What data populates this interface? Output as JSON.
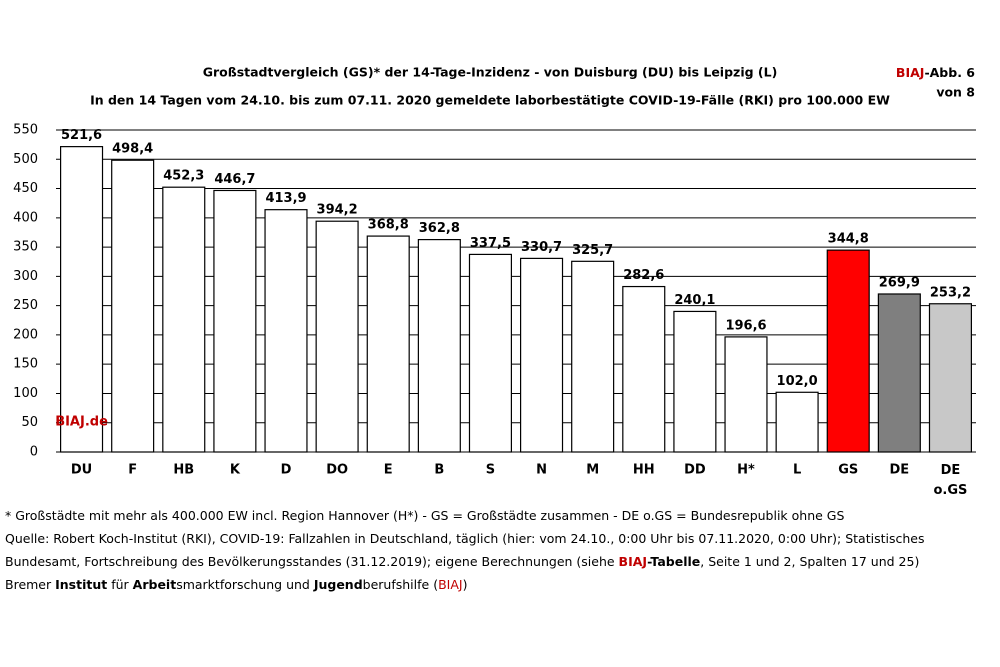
{
  "header": {
    "title_line1": "Großstadtvergleich (GS)* der 14-Tage-Inzidenz - von Duisburg (DU) bis Leipzig (L)",
    "title_line2": "In den 14 Tagen vom 24.10. bis zum 07.11. 2020 gemeldete laborbestätigte COVID-19-Fälle (RKI) pro 100.000 EW",
    "badge": [
      "BIAJ",
      "-Abb. 6",
      "von 8"
    ]
  },
  "chart_data": {
    "type": "bar",
    "categories": [
      "DU",
      "F",
      "HB",
      "K",
      "D",
      "DO",
      "E",
      "B",
      "S",
      "N",
      "M",
      "HH",
      "DD",
      "H*",
      "L",
      "GS",
      "DE",
      "DE o.GS"
    ],
    "values": [
      521.6,
      498.4,
      452.3,
      446.7,
      413.9,
      394.2,
      368.8,
      362.8,
      337.5,
      330.7,
      325.7,
      282.6,
      240.1,
      196.6,
      102.0,
      344.8,
      269.9,
      253.2
    ],
    "value_labels": [
      "521,6",
      "498,4",
      "452,3",
      "446,7",
      "413,9",
      "394,2",
      "368,8",
      "362,8",
      "337,5",
      "330,7",
      "325,7",
      "282,6",
      "240,1",
      "196,6",
      "102,0",
      "344,8",
      "269,9",
      "253,2"
    ],
    "colors": [
      "#ffffff",
      "#ffffff",
      "#ffffff",
      "#ffffff",
      "#ffffff",
      "#ffffff",
      "#ffffff",
      "#ffffff",
      "#ffffff",
      "#ffffff",
      "#ffffff",
      "#ffffff",
      "#ffffff",
      "#ffffff",
      "#ffffff",
      "#ff0000",
      "#7f7f7f",
      "#c8c8c8"
    ],
    "ylim": [
      0,
      550
    ],
    "yticks": [
      0,
      50,
      100,
      150,
      200,
      250,
      300,
      350,
      400,
      450,
      500,
      550
    ],
    "grid": true,
    "watermark": "BIAJ.de"
  },
  "footer": {
    "line1": [
      "* Großstädte mit mehr als 400.000 EW incl. Region Hannover (H*) - GS = Großstädte zusammen - DE o.GS = Bundesrepublik ohne GS"
    ],
    "line2": [
      "Quelle: Robert Koch-Institut (RKI), COVID-19: Fallzahlen in Deutschland, täglich (hier: vom 24.10., 0:00 Uhr bis 07.11.2020, 0:00 Uhr); Statistisches"
    ],
    "line3": [
      "Bundesamt, Fortschreibung des Bevölkerungsstandes (31.12.2019); eigene Berechnungen (siehe ",
      "BIAJ",
      "-Tabelle",
      ", Seite 1 und 2, Spalten 17 und 25)"
    ],
    "line4": [
      "Bremer ",
      "Institut",
      " für ",
      "Arbeit",
      "smarktforschung und ",
      "Jugend",
      "berufshilfe (",
      "BIAJ",
      ")"
    ]
  }
}
